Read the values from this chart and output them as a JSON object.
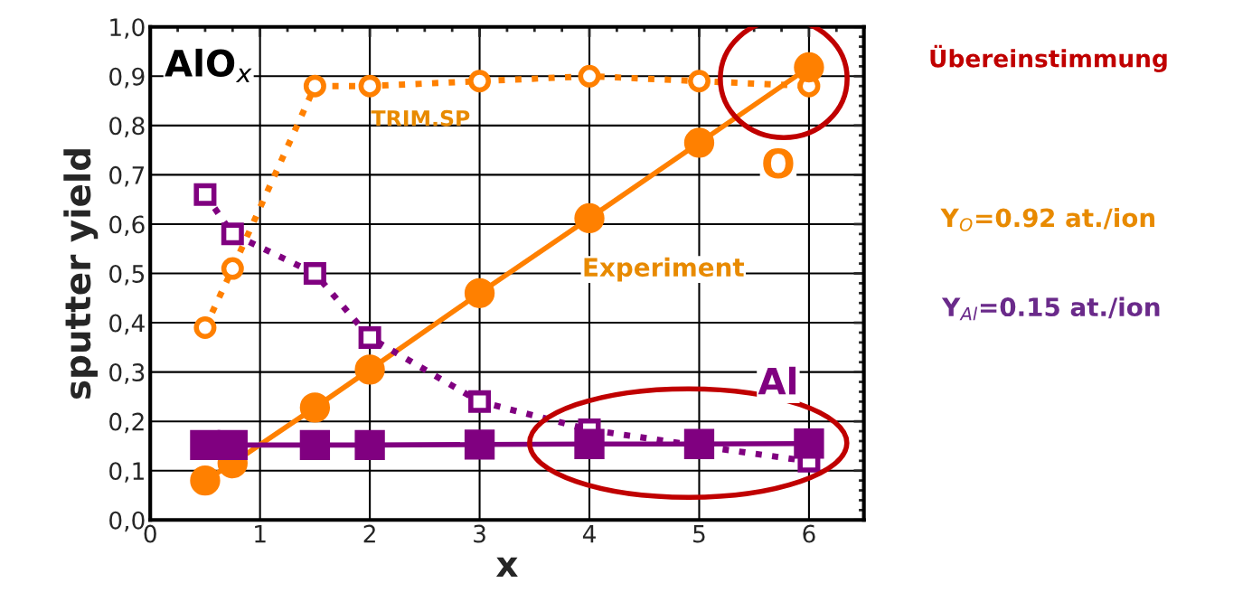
{
  "chart_data": {
    "type": "line",
    "xlabel": "x",
    "ylabel": "sputter yield",
    "x": [
      0.5,
      0.75,
      1.5,
      2,
      3,
      4,
      5,
      6
    ],
    "series": [
      {
        "color": "#ff8000",
        "marker": "circle",
        "line_style": "solid",
        "values": [
          0.08,
          0.115,
          0.228,
          0.305,
          0.46,
          0.612,
          0.765,
          0.918
        ]
      },
      {
        "color": "#ff8000",
        "marker": "circle",
        "line_style": "dotted",
        "values": [
          0.39,
          0.51,
          0.88,
          0.88,
          0.89,
          0.9,
          0.89,
          0.88
        ]
      },
      {
        "color": "#800080",
        "marker": "square",
        "line_style": "solid",
        "values": [
          0.152,
          0.152,
          0.152,
          0.152,
          0.153,
          0.154,
          0.154,
          0.155
        ]
      },
      {
        "color": "#800080",
        "marker": "square",
        "line_style": "dotted",
        "values": [
          0.66,
          0.58,
          0.5,
          0.37,
          0.24,
          0.183,
          0.15,
          0.119
        ]
      }
    ],
    "xlim": [
      0,
      6.5
    ],
    "xticks": [
      0,
      1,
      2,
      3,
      4,
      5,
      6
    ],
    "ylim": [
      0,
      1
    ],
    "yticks": [
      {
        "value": 0,
        "label": "0,0"
      },
      {
        "value": 0.1,
        "label": "0,1"
      },
      {
        "value": 0.2,
        "label": "0,2"
      },
      {
        "value": 0.3,
        "label": "0,3"
      },
      {
        "value": 0.4,
        "label": "0,4"
      },
      {
        "value": 0.5,
        "label": "0,5"
      },
      {
        "value": 0.6,
        "label": "0,6"
      },
      {
        "value": 0.7,
        "label": "0,7"
      },
      {
        "value": 0.8,
        "label": "0,8"
      },
      {
        "value": 0.9,
        "label": "0,9"
      },
      {
        "value": 1,
        "label": "1,0"
      }
    ],
    "grid": true,
    "annotations": [
      "AlO$_{x}$",
      "TRIM.SP",
      "Experiment",
      "O",
      "Al",
      "Übereinstimmung",
      "Y$_{O}$=0.92 at./ion",
      "Y$_{Al}$=0.15 at./ion"
    ]
  }
}
